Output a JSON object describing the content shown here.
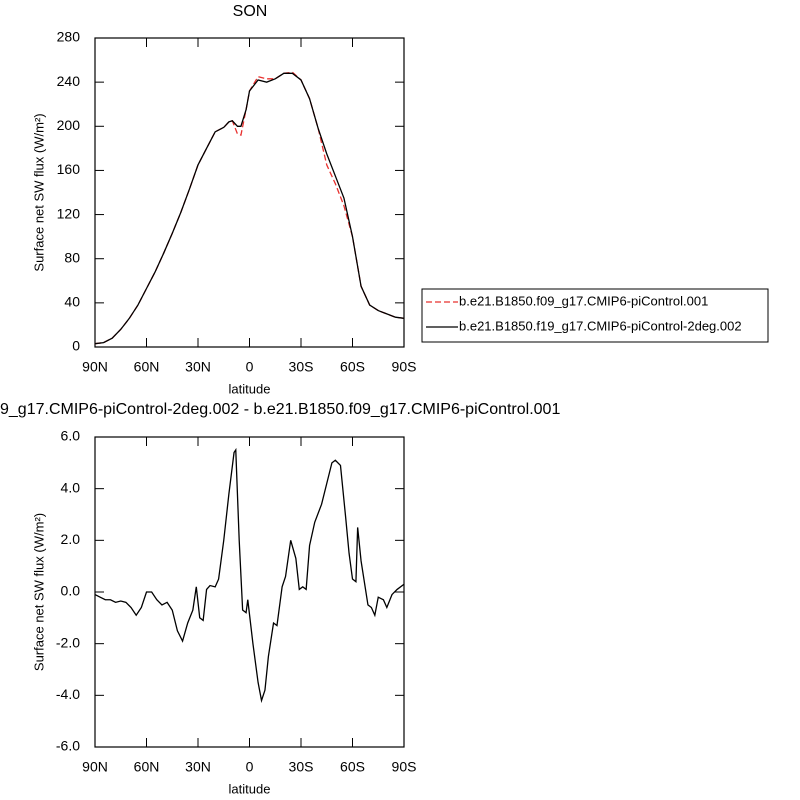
{
  "chart_data": [
    {
      "type": "line",
      "title": "SON",
      "xlabel": "latitude",
      "ylabel": "Surface net SW flux (W/m²)",
      "x": [
        90,
        85,
        80,
        75,
        70,
        65,
        60,
        55,
        50,
        45,
        40,
        35,
        30,
        25,
        20,
        15,
        12,
        10,
        7,
        5,
        2,
        0,
        -5,
        -10,
        -15,
        -20,
        -25,
        -30,
        -35,
        -40,
        -45,
        -50,
        -55,
        -60,
        -65,
        -70,
        -75,
        -80,
        -85,
        -90
      ],
      "series": [
        {
          "name": "b.e21.B1850.f09_g17.CMIP6-piControl.001",
          "color": "#e8312f",
          "dashed": true,
          "values": [
            3,
            4,
            8,
            16,
            26,
            38,
            53,
            68,
            85,
            103,
            122,
            143,
            165,
            180,
            195,
            199,
            204,
            205,
            193,
            192,
            215,
            232,
            245,
            243,
            243,
            248,
            249,
            242,
            225,
            198,
            165,
            148,
            128,
            100,
            55,
            38,
            33,
            30,
            27,
            26
          ]
        },
        {
          "name": "b.e21.B1850.f19_g17.CMIP6-piControl-2deg.002",
          "color": "#000000",
          "dashed": false,
          "values": [
            3,
            4,
            8,
            16,
            26,
            38,
            53,
            68,
            85,
            103,
            122,
            143,
            165,
            180,
            195,
            199,
            204,
            205,
            200,
            200,
            215,
            232,
            242,
            240,
            243,
            248,
            248,
            242,
            225,
            198,
            175,
            155,
            135,
            100,
            55,
            38,
            33,
            30,
            27,
            26
          ]
        }
      ],
      "xlim": [
        90,
        -90
      ],
      "xticks": [
        {
          "value": 90,
          "label": "90N"
        },
        {
          "value": 60,
          "label": "60N"
        },
        {
          "value": 30,
          "label": "30N"
        },
        0,
        {
          "value": -30,
          "label": "30S"
        },
        {
          "value": -60,
          "label": "60S"
        },
        {
          "value": -90,
          "label": "90S"
        }
      ],
      "ylim": [
        0,
        280
      ],
      "yticks": [
        0,
        40,
        80,
        120,
        160,
        200,
        240,
        280
      ],
      "legend": "right"
    },
    {
      "type": "line",
      "title": "9_g17.CMIP6-piControl-2deg.002 - b.e21.B1850.f09_g17.CMIP6-piControl.001",
      "xlabel": "latitude",
      "ylabel": "Surface net SW flux (W/m²)",
      "x": [
        90,
        87,
        84,
        81,
        78,
        75,
        72,
        69,
        66,
        63,
        60,
        57,
        54,
        51,
        48,
        45,
        42,
        39,
        36,
        33,
        31,
        29,
        27,
        25,
        23,
        20,
        18,
        15,
        12,
        9,
        8,
        6,
        4,
        2,
        1,
        -2,
        -5,
        -7,
        -9,
        -11,
        -14,
        -16,
        -19,
        -21,
        -24,
        -27,
        -29,
        -31,
        -33,
        -35,
        -38,
        -42,
        -45,
        -48,
        -50,
        -53,
        -56,
        -58,
        -60,
        -62,
        -63,
        -65,
        -69,
        -71,
        -73,
        -75,
        -78,
        -80,
        -83,
        -86,
        -90
      ],
      "color": "#000000",
      "values": [
        -0.1,
        -0.2,
        -0.3,
        -0.3,
        -0.4,
        -0.35,
        -0.4,
        -0.6,
        -0.9,
        -0.6,
        0.0,
        0.0,
        -0.3,
        -0.5,
        -0.4,
        -0.7,
        -1.5,
        -1.9,
        -1.2,
        -0.7,
        0.2,
        -1.0,
        -1.1,
        0.1,
        0.25,
        0.2,
        0.5,
        2.0,
        3.8,
        5.4,
        5.5,
        2.0,
        -0.7,
        -0.8,
        -0.3,
        -2.0,
        -3.5,
        -4.2,
        -3.8,
        -2.5,
        -1.2,
        -1.3,
        0.2,
        0.6,
        2.0,
        1.3,
        0.1,
        0.2,
        0.1,
        1.8,
        2.7,
        3.4,
        4.2,
        5.0,
        5.1,
        4.9,
        2.9,
        1.5,
        0.5,
        0.4,
        2.5,
        1.2,
        -0.5,
        -0.6,
        -0.9,
        -0.2,
        -0.3,
        -0.6,
        -0.1,
        0.1,
        0.3
      ],
      "xlim": [
        90,
        -90
      ],
      "xticks": [
        {
          "value": 90,
          "label": "90N"
        },
        {
          "value": 60,
          "label": "60N"
        },
        {
          "value": 30,
          "label": "30N"
        },
        0,
        {
          "value": -30,
          "label": "30S"
        },
        {
          "value": -60,
          "label": "60S"
        },
        {
          "value": -90,
          "label": "90S"
        }
      ],
      "ylim": [
        -6,
        6
      ],
      "yticks": [
        {
          "value": -6,
          "label": "-6.0"
        },
        {
          "value": -4,
          "label": "-4.0"
        },
        {
          "value": -2,
          "label": "-2.0"
        },
        {
          "value": 0,
          "label": "0.0"
        },
        {
          "value": 2,
          "label": "2.0"
        },
        {
          "value": 4,
          "label": "4.0"
        },
        {
          "value": 6,
          "label": "6.0"
        }
      ]
    }
  ]
}
